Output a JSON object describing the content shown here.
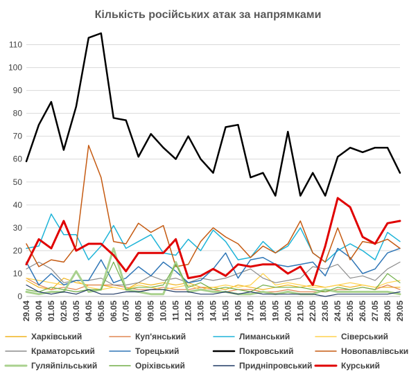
{
  "chart_data": {
    "type": "line",
    "title": "Кількість російських атак за напрямками",
    "xlabel": "",
    "ylabel": "",
    "ylim": [
      0,
      115
    ],
    "yticks": [
      0,
      10,
      20,
      30,
      40,
      50,
      60,
      70,
      80,
      90,
      100,
      110
    ],
    "grid": "horizontal",
    "legend_position": "bottom",
    "x": [
      "29.04",
      "30.04",
      "01.05",
      "02.05",
      "03.05",
      "04.05",
      "05.05",
      "06.05",
      "07.05",
      "08.05",
      "09.05",
      "10.05",
      "11.05",
      "12.05",
      "13.05",
      "14.05",
      "15.05",
      "16.05",
      "17.05",
      "18.05",
      "19.05",
      "20.05",
      "21.05",
      "22.05",
      "23.05",
      "24.05",
      "25.05",
      "26.05",
      "27.05",
      "28.05",
      "29.05"
    ],
    "series": [
      {
        "name": "Харківський",
        "color": "#F0B41E",
        "width": 1.2,
        "values": [
          7,
          4,
          3,
          8,
          6,
          5,
          5,
          4,
          3,
          6,
          5,
          6,
          5,
          6,
          4,
          4,
          3,
          5,
          4,
          3,
          4,
          5,
          4,
          5,
          4,
          5,
          4,
          5,
          4,
          4,
          4
        ]
      },
      {
        "name": "Куп'янський",
        "color": "#E08552",
        "width": 1.2,
        "values": [
          8,
          5,
          3,
          4,
          3,
          5,
          5,
          5,
          4,
          3,
          3,
          4,
          3,
          3,
          4,
          3,
          2,
          3,
          3,
          2,
          2,
          3,
          2,
          2,
          2,
          3,
          3,
          4,
          3,
          5,
          3
        ]
      },
      {
        "name": "Лиманський",
        "color": "#1EB4D8",
        "width": 1.5,
        "values": [
          21,
          22,
          36,
          27,
          27,
          16,
          22,
          31,
          21,
          24,
          27,
          19,
          18,
          25,
          20,
          29,
          24,
          16,
          17,
          24,
          19,
          22,
          30,
          19,
          15,
          20,
          23,
          20,
          16,
          28,
          24
        ]
      },
      {
        "name": "Сіверський",
        "color": "#FFD24D",
        "width": 1.2,
        "values": [
          8,
          7,
          6,
          5,
          7,
          4,
          3,
          4,
          3,
          5,
          4,
          3,
          4,
          5,
          3,
          4,
          5,
          4,
          5,
          10,
          5,
          6,
          5,
          4,
          4,
          5,
          6,
          5,
          4,
          6,
          7
        ]
      },
      {
        "name": "Краматорський",
        "color": "#8C8C8C",
        "width": 1.2,
        "values": [
          12,
          15,
          12,
          6,
          7,
          7,
          8,
          5,
          5,
          6,
          9,
          7,
          8,
          6,
          8,
          7,
          8,
          10,
          12,
          8,
          6,
          7,
          8,
          13,
          12,
          14,
          8,
          9,
          7,
          12,
          15
        ]
      },
      {
        "name": "Торецький",
        "color": "#2E75B6",
        "width": 1.5,
        "values": [
          15,
          5,
          10,
          5,
          7,
          7,
          16,
          6,
          8,
          13,
          9,
          15,
          11,
          6,
          7,
          12,
          19,
          8,
          16,
          17,
          14,
          13,
          14,
          15,
          9,
          21,
          17,
          10,
          12,
          19,
          21
        ]
      },
      {
        "name": "Покровський",
        "color": "#000000",
        "width": 2.5,
        "values": [
          59,
          75,
          85,
          64,
          83,
          113,
          115,
          78,
          77,
          61,
          71,
          65,
          60,
          70,
          60,
          54,
          74,
          75,
          52,
          54,
          44,
          72,
          44,
          54,
          44,
          61,
          65,
          63,
          65,
          65,
          54
        ]
      },
      {
        "name": "Новопавлівський",
        "color": "#C55A11",
        "width": 1.5,
        "values": [
          23,
          13,
          16,
          15,
          22,
          66,
          52,
          24,
          23,
          32,
          28,
          31,
          13,
          14,
          24,
          30,
          26,
          23,
          17,
          22,
          19,
          23,
          33,
          19,
          15,
          30,
          16,
          24,
          23,
          25,
          21
        ]
      },
      {
        "name": "Гуляйпільський",
        "color": "#A9D18E",
        "width": 3,
        "values": [
          2,
          1,
          2,
          2,
          11,
          2,
          3,
          21,
          3,
          2,
          1,
          1,
          15,
          2,
          3,
          2,
          2,
          1,
          1,
          2,
          1,
          2,
          1,
          1,
          3,
          2,
          2,
          2,
          2,
          2,
          1
        ]
      },
      {
        "name": "Оріхівський",
        "color": "#70AD47",
        "width": 1.2,
        "values": [
          3,
          2,
          4,
          3,
          2,
          3,
          3,
          15,
          3,
          4,
          4,
          5,
          14,
          4,
          6,
          3,
          4,
          3,
          2,
          5,
          4,
          4,
          4,
          3,
          2,
          4,
          3,
          4,
          3,
          10,
          6
        ]
      },
      {
        "name": "Придніпровський",
        "color": "#1F3864",
        "width": 1.2,
        "values": [
          5,
          2,
          1,
          2,
          1,
          3,
          1,
          1,
          2,
          2,
          3,
          3,
          2,
          2,
          1,
          1,
          2,
          1,
          2,
          1,
          1,
          1,
          1,
          1,
          0,
          1,
          1,
          1,
          1,
          1,
          2
        ]
      },
      {
        "name": "Курський",
        "color": "#E00000",
        "width": 3,
        "values": [
          14,
          25,
          21,
          33,
          20,
          23,
          23,
          18,
          11,
          19,
          19,
          19,
          25,
          8,
          9,
          12,
          9,
          14,
          13,
          14,
          14,
          10,
          13,
          5,
          22,
          43,
          39,
          26,
          23,
          32,
          33
        ]
      }
    ]
  }
}
